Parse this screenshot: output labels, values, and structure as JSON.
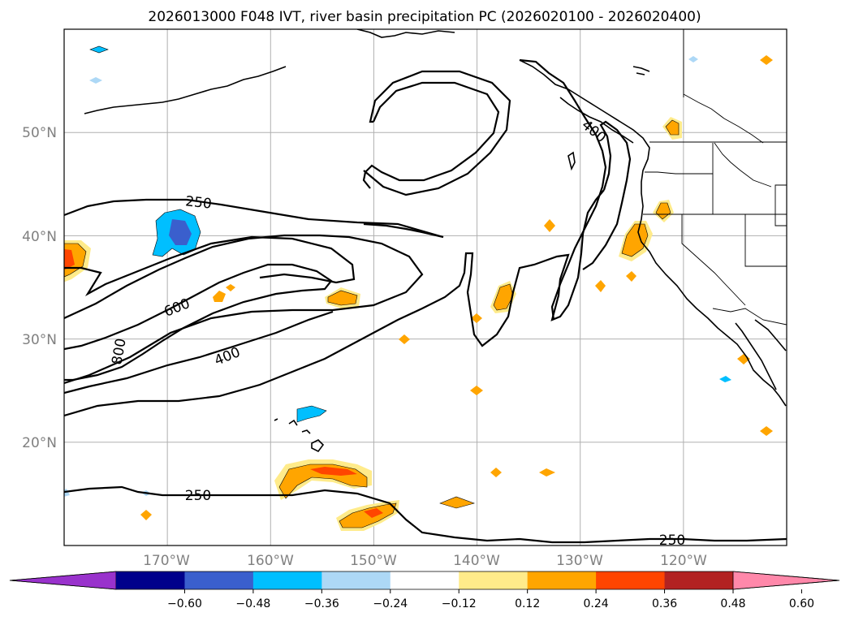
{
  "title": "2026013000 F048 IVT, river basin precipitation PC (2026020100 - 2026020400)",
  "map": {
    "lon_range": [
      -180,
      -110
    ],
    "lat_range": [
      10,
      60
    ],
    "gridlines": true,
    "lat_ticks": [
      "50°N",
      "40°N",
      "30°N",
      "20°N"
    ],
    "lon_ticks": [
      "170°W",
      "160°W",
      "150°W",
      "140°W",
      "130°W",
      "120°W"
    ],
    "contour_labels": [
      "250",
      "600",
      "800",
      "400",
      "400",
      "250",
      "250"
    ]
  },
  "colorbar": {
    "ticks": [
      "−0.60",
      "−0.48",
      "−0.36",
      "−0.24",
      "−0.12",
      "0.12",
      "0.24",
      "0.36",
      "0.48",
      "0.60"
    ],
    "colors": [
      "#9932cc",
      "#00008b",
      "#3a5fcd",
      "#00bfff",
      "#add8f6",
      "#ffffff",
      "#ffeb8a",
      "#ffa500",
      "#ff4500",
      "#b22222",
      "#ff88aa"
    ],
    "extend": "both"
  },
  "chart_data": {
    "type": "map",
    "title": "2026013000 F048 IVT, river basin precipitation PC (2026020100 - 2026020400)",
    "xlim": [
      -180,
      -110
    ],
    "ylim": [
      10,
      60
    ],
    "ivt_contour_levels": [
      250,
      400,
      600,
      800
    ],
    "colorbar_levels": [
      -0.6,
      -0.48,
      -0.36,
      -0.24,
      -0.12,
      0.12,
      0.24,
      0.36,
      0.48,
      0.6
    ]
  }
}
